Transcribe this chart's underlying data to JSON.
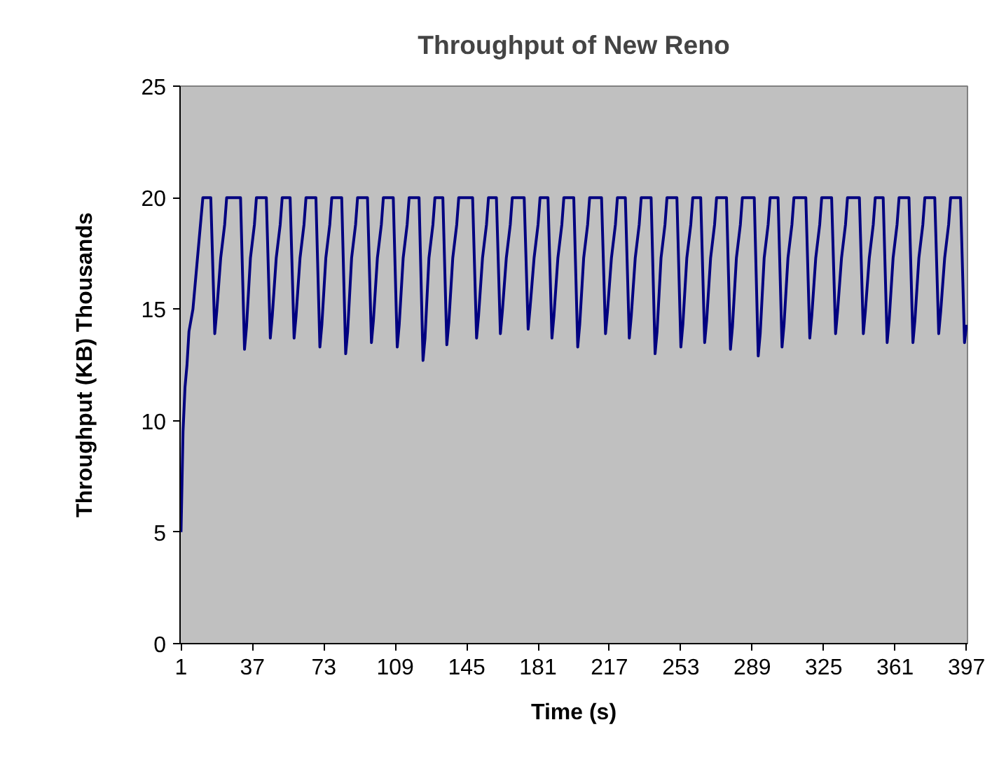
{
  "chart_data": {
    "type": "line",
    "title": "Throughput of New Reno",
    "xlabel": "Time (s)",
    "ylabel": "Throughput (KB) Thousands",
    "x": [
      1,
      2,
      3,
      4,
      5,
      7,
      9,
      11,
      12,
      16,
      18,
      19,
      21,
      23,
      24,
      31,
      33,
      34,
      36,
      38,
      39,
      44,
      46,
      47,
      49,
      51,
      52,
      56,
      58,
      59,
      61,
      63,
      64,
      69,
      71,
      72,
      74,
      76,
      77,
      82,
      84,
      85,
      87,
      89,
      90,
      95,
      97,
      98,
      100,
      102,
      103,
      108,
      110,
      111,
      113,
      115,
      116,
      121,
      123,
      124,
      126,
      128,
      129,
      133,
      135,
      136,
      138,
      140,
      141,
      148,
      150,
      151,
      153,
      155,
      156,
      160,
      162,
      163,
      165,
      167,
      168,
      174,
      176,
      177,
      179,
      181,
      182,
      186,
      188,
      189,
      191,
      193,
      194,
      199,
      201,
      202,
      204,
      206,
      207,
      213,
      215,
      216,
      218,
      220,
      221,
      225,
      227,
      228,
      230,
      232,
      233,
      238,
      240,
      241,
      243,
      245,
      246,
      251,
      253,
      254,
      256,
      258,
      259,
      263,
      265,
      266,
      268,
      270,
      271,
      276,
      278,
      279,
      281,
      283,
      284,
      290,
      292,
      293,
      295,
      297,
      298,
      302,
      304,
      305,
      307,
      309,
      310,
      316,
      318,
      319,
      321,
      323,
      324,
      329,
      331,
      332,
      334,
      336,
      337,
      343,
      345,
      346,
      348,
      350,
      351,
      355,
      357,
      358,
      360,
      362,
      363,
      368,
      370,
      371,
      373,
      375,
      376,
      381,
      383,
      384,
      386,
      388,
      389,
      394,
      396,
      397
    ],
    "series": [
      {
        "color": "#000080",
        "values": [
          5,
          9.5,
          11.5,
          12.5,
          14,
          15,
          17,
          19,
          20,
          20,
          13.9,
          14.9,
          17.3,
          18.8,
          20,
          20,
          13.2,
          14.2,
          17.3,
          18.8,
          20,
          20,
          13.7,
          14.7,
          17.3,
          18.8,
          20,
          20,
          13.7,
          14.7,
          17.3,
          18.8,
          20,
          20,
          13.3,
          14.3,
          17.3,
          18.8,
          20,
          20,
          13.0,
          14.0,
          17.3,
          18.8,
          20,
          20,
          13.5,
          14.5,
          17.3,
          18.8,
          20,
          20,
          13.3,
          14.3,
          17.3,
          18.8,
          20,
          20,
          12.7,
          13.7,
          17.3,
          18.8,
          20,
          20,
          13.4,
          14.4,
          17.3,
          18.8,
          20,
          20,
          13.7,
          14.7,
          17.3,
          18.8,
          20,
          20,
          13.9,
          14.9,
          17.3,
          18.8,
          20,
          20,
          14.1,
          15.1,
          17.3,
          18.8,
          20,
          20,
          13.7,
          14.7,
          17.3,
          18.8,
          20,
          20,
          13.3,
          14.3,
          17.3,
          18.8,
          20,
          20,
          13.9,
          14.9,
          17.3,
          18.8,
          20,
          20,
          13.7,
          14.7,
          17.3,
          18.8,
          20,
          20,
          13.0,
          14.0,
          17.3,
          18.8,
          20,
          20,
          13.3,
          14.3,
          17.3,
          18.8,
          20,
          20,
          13.5,
          14.5,
          17.3,
          18.8,
          20,
          20,
          13.2,
          14.2,
          17.3,
          18.8,
          20,
          20,
          12.9,
          13.9,
          17.3,
          18.8,
          20,
          20,
          13.3,
          14.3,
          17.3,
          18.8,
          20,
          20,
          13.7,
          14.7,
          17.3,
          18.8,
          20,
          20,
          13.9,
          14.9,
          17.3,
          18.8,
          20,
          20,
          13.9,
          14.9,
          17.3,
          18.8,
          20,
          20,
          13.5,
          14.5,
          17.3,
          18.8,
          20,
          20,
          13.5,
          14.5,
          17.3,
          18.8,
          20,
          20,
          13.9,
          14.9,
          17.3,
          18.8,
          20,
          20,
          13.5,
          14.3
        ]
      }
    ],
    "xlim": [
      0.5,
      397.5
    ],
    "xticks": [
      1,
      37,
      73,
      109,
      145,
      181,
      217,
      253,
      289,
      325,
      361,
      397
    ],
    "ylim": [
      0,
      25
    ],
    "yticks": [
      0,
      5,
      10,
      15,
      20,
      25
    ],
    "grid": false,
    "marker": "none",
    "line_style": "solid"
  }
}
